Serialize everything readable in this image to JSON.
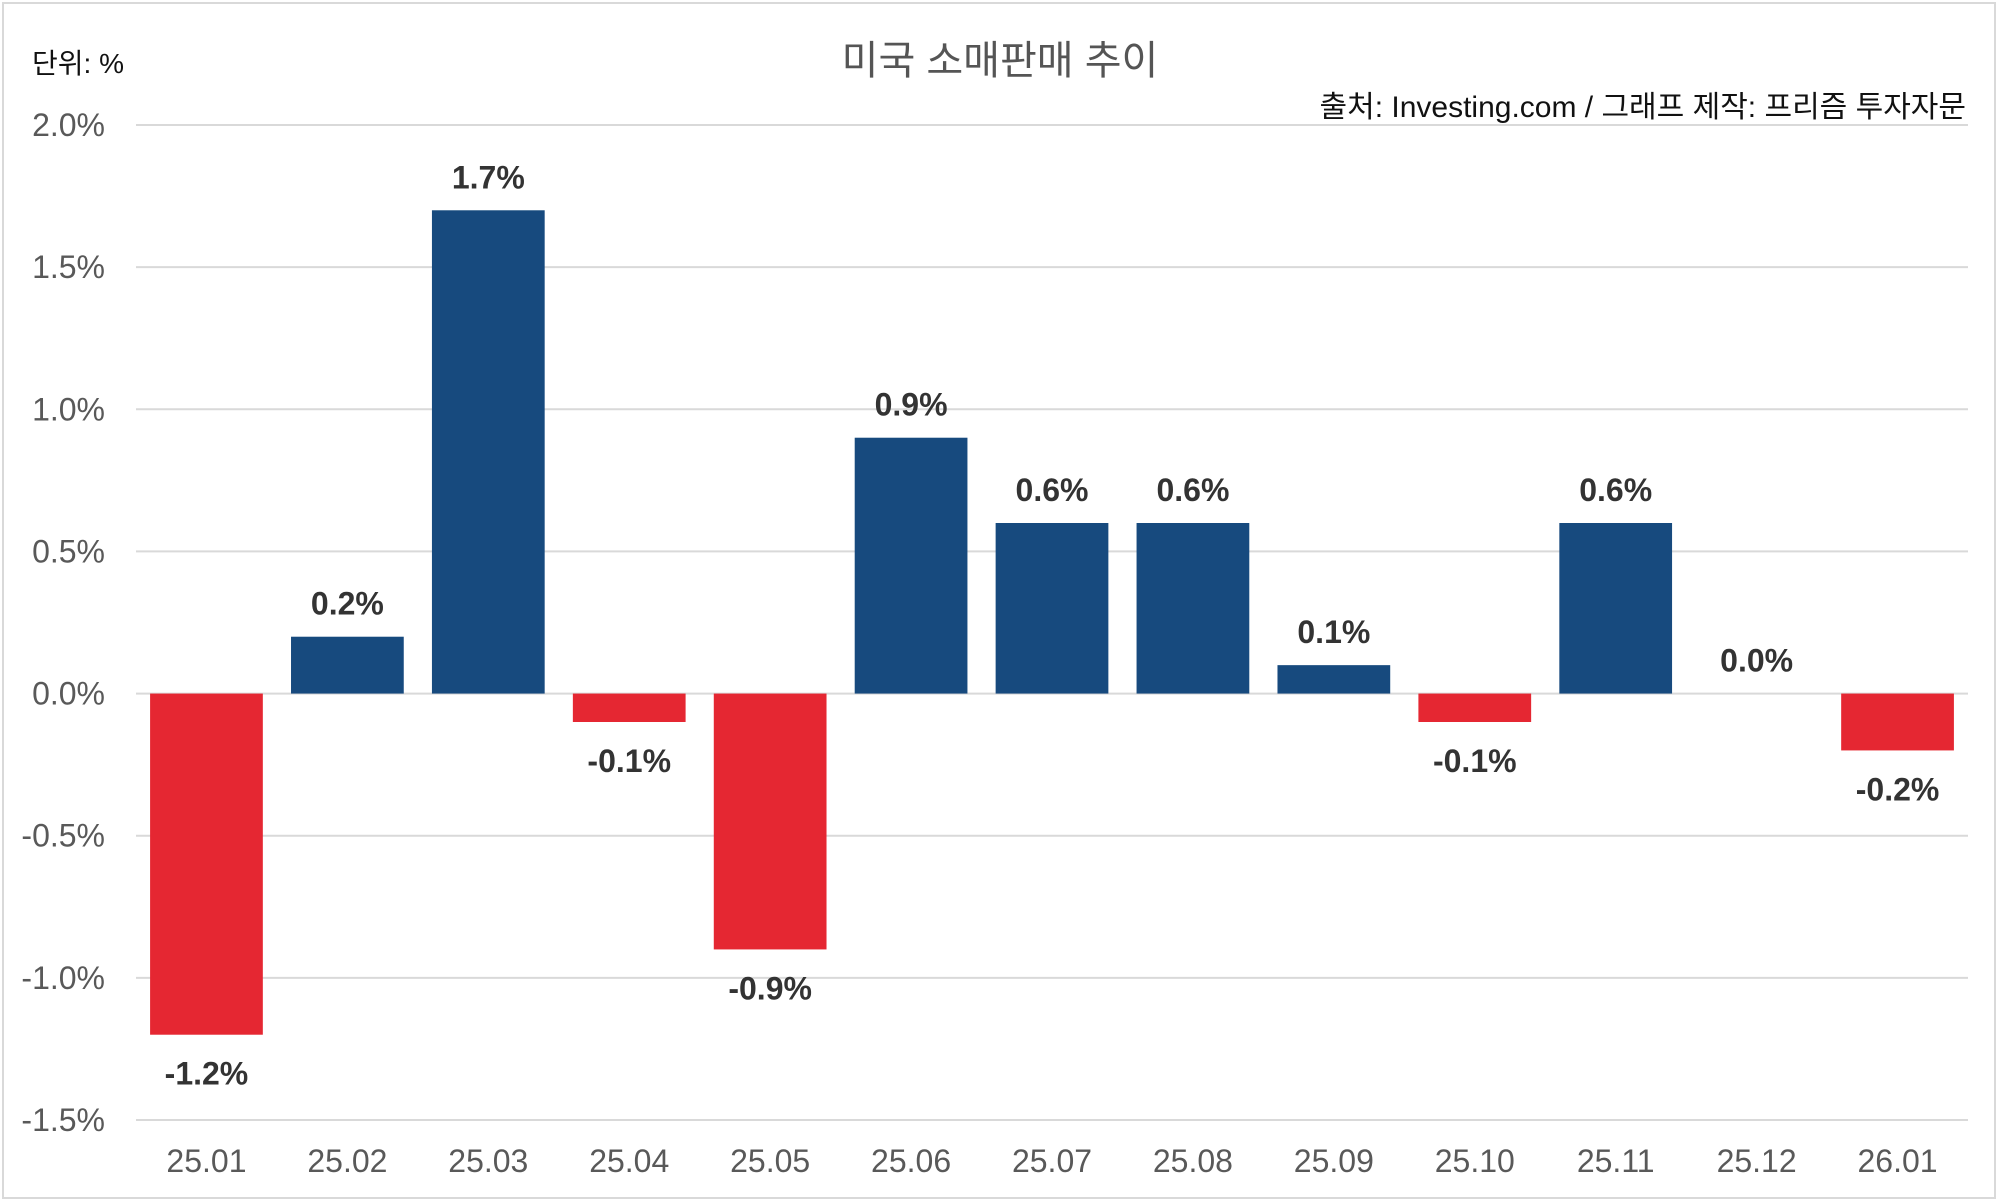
{
  "chart_data": {
    "type": "bar",
    "title": "미국 소매판매 추이",
    "unit_label": "단위: %",
    "source_label": "출처: Investing.com / 그래프 제작: 프리즘 투자자문",
    "categories": [
      "25.01",
      "25.02",
      "25.03",
      "25.04",
      "25.05",
      "25.06",
      "25.07",
      "25.08",
      "25.09",
      "25.10",
      "25.11",
      "25.12",
      "26.01"
    ],
    "values": [
      -1.2,
      0.2,
      1.7,
      -0.1,
      -0.9,
      0.9,
      0.6,
      0.6,
      0.1,
      -0.1,
      0.6,
      0.0,
      -0.2
    ],
    "data_labels": [
      "-1.2%",
      "0.2%",
      "1.7%",
      "-0.1%",
      "-0.9%",
      "0.9%",
      "0.6%",
      "0.6%",
      "0.1%",
      "-0.1%",
      "0.6%",
      "0.0%",
      "-0.2%"
    ],
    "ylim": [
      -1.5,
      2.0
    ],
    "yticks": [
      2.0,
      1.5,
      1.0,
      0.5,
      0.0,
      -0.5,
      -1.0,
      -1.5
    ],
    "ytick_labels": [
      "2.0%",
      "1.5%",
      "1.0%",
      "0.5%",
      "0.0%",
      "-0.5%",
      "-1.0%",
      "-1.5%"
    ],
    "grid": true,
    "legend": "none",
    "colors": {
      "positive": "#174a7e",
      "negative": "#e52732",
      "grid": "#d9d9d9",
      "tick_text": "#595959",
      "label_text": "#333333"
    }
  }
}
